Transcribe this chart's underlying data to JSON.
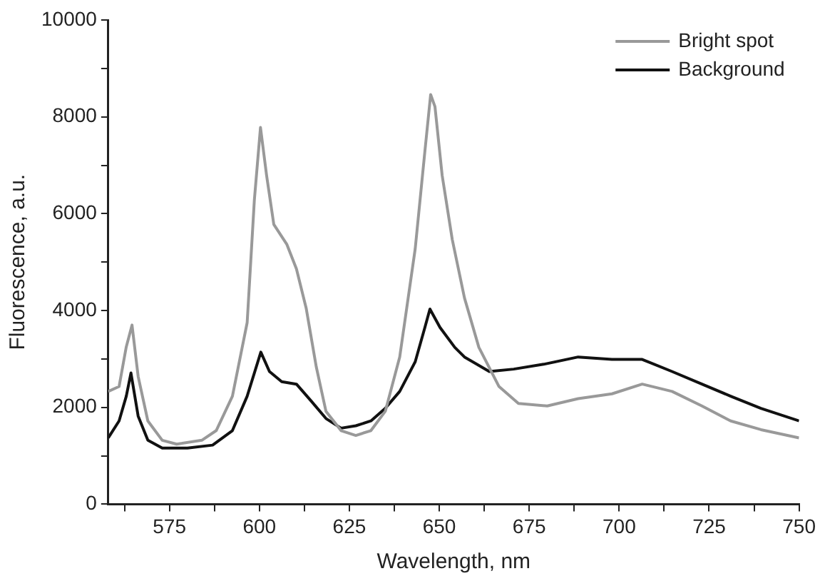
{
  "chart_data": {
    "type": "line",
    "xlabel": "Wavelength, nm",
    "ylabel": "Fluorescence, a.u.",
    "xlim": [
      558,
      750
    ],
    "xticks": [
      {
        "value": 562.5,
        "label": null
      },
      575,
      {
        "value": 587.5,
        "label": null
      },
      600,
      {
        "value": 612.5,
        "label": null
      },
      625,
      {
        "value": 637.5,
        "label": null
      },
      650,
      {
        "value": 662.5,
        "label": null
      },
      675,
      {
        "value": 687.5,
        "label": null
      },
      700,
      {
        "value": 712.5,
        "label": null
      },
      725,
      {
        "value": 737.5,
        "label": null
      },
      750
    ],
    "ylim": [
      0,
      10000
    ],
    "yticks": [
      0,
      {
        "value": 1000,
        "label": null
      },
      2000,
      {
        "value": 3000,
        "label": null
      },
      4000,
      {
        "value": 5000,
        "label": null
      },
      6000,
      {
        "value": 7000,
        "label": null
      },
      8000,
      {
        "value": 9000,
        "label": null
      },
      10000
    ],
    "grid": false,
    "legend": "top right",
    "marker": "none",
    "line_style": "solid",
    "series": [
      {
        "name": "Bright spot",
        "color": "#999999",
        "x": [
          558,
          561,
          563,
          564.6,
          566.3,
          569,
          573,
          577,
          584,
          588,
          592.5,
          596.6,
          598.6,
          600.3,
          602,
          604,
          607.6,
          610.3,
          613,
          615.8,
          618.5,
          622.7,
          626.8,
          631,
          635,
          639,
          643.3,
          646,
          647.6,
          648.8,
          650.8,
          653.6,
          657,
          661,
          666.6,
          672,
          680,
          688.6,
          698,
          706.4,
          714.7,
          723,
          731,
          739.4,
          750
        ],
        "values": [
          2330,
          2430,
          3250,
          3700,
          2640,
          1720,
          1320,
          1240,
          1320,
          1520,
          2230,
          3750,
          6280,
          7780,
          6790,
          5780,
          5370,
          4860,
          4050,
          2840,
          1920,
          1520,
          1420,
          1520,
          1920,
          3040,
          5270,
          7290,
          8460,
          8210,
          6790,
          5470,
          4260,
          3240,
          2430,
          2080,
          2030,
          2180,
          2280,
          2480,
          2330,
          2030,
          1720,
          1540,
          1370
        ]
      },
      {
        "name": "Background",
        "color": "#111111",
        "x": [
          558,
          561,
          563,
          564.3,
          566.3,
          569,
          573,
          580,
          587,
          592.5,
          596.6,
          600.4,
          602.8,
          606.2,
          610.3,
          614.4,
          618.5,
          622.7,
          626.8,
          631,
          635,
          639,
          643.3,
          646,
          647.4,
          650.2,
          654.3,
          657,
          663.9,
          670.7,
          679,
          688.6,
          698,
          706.4,
          714.7,
          723,
          731,
          739.4,
          750
        ],
        "values": [
          1370,
          1720,
          2230,
          2710,
          1820,
          1320,
          1160,
          1160,
          1220,
          1520,
          2230,
          3140,
          2740,
          2530,
          2480,
          2130,
          1770,
          1570,
          1620,
          1720,
          1980,
          2330,
          2940,
          3650,
          4030,
          3650,
          3240,
          3040,
          2740,
          2790,
          2890,
          3040,
          2990,
          2990,
          2740,
          2480,
          2230,
          1980,
          1720
        ]
      }
    ]
  }
}
